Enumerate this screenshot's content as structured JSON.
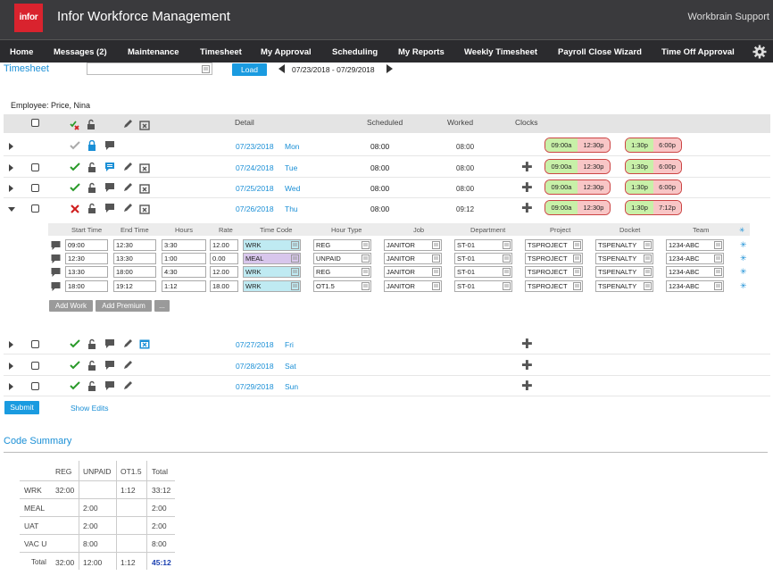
{
  "header": {
    "logo_text": "infor",
    "app_title": "Infor Workforce Management",
    "support_label": "Workbrain Support"
  },
  "nav": [
    "Home",
    "Messages (2)",
    "Maintenance",
    "Timesheet",
    "My Approval",
    "Scheduling",
    "My Reports",
    "Weekly Timesheet",
    "Payroll Close Wizard",
    "Time Off Approval"
  ],
  "toolbar": {
    "title": "Timesheet",
    "load_label": "Load",
    "date_range": "07/23/2018  -  07/29/2018"
  },
  "employee": "Employee: Price, Nina",
  "table_headers": {
    "detail": "Detail",
    "scheduled": "Scheduled",
    "worked": "Worked",
    "clocks": "Clocks"
  },
  "days": [
    {
      "date": "07/23/2018",
      "day": "Mon",
      "scheduled": "08:00",
      "worked": "08:00",
      "clocks": [
        [
          "09:00a",
          "12:30p"
        ],
        [
          "1:30p",
          "6:00p"
        ]
      ]
    },
    {
      "date": "07/24/2018",
      "day": "Tue",
      "scheduled": "08:00",
      "worked": "08:00",
      "clocks": [
        [
          "09:00a",
          "12:30p"
        ],
        [
          "1:30p",
          "6:00p"
        ]
      ]
    },
    {
      "date": "07/25/2018",
      "day": "Wed",
      "scheduled": "08:00",
      "worked": "08:00",
      "clocks": [
        [
          "09:00a",
          "12:30p"
        ],
        [
          "1:30p",
          "6:00p"
        ]
      ]
    },
    {
      "date": "07/26/2018",
      "day": "Thu",
      "scheduled": "08:00",
      "worked": "09:12",
      "clocks": [
        [
          "09:00a",
          "12:30p"
        ],
        [
          "1:30p",
          "7:12p"
        ]
      ]
    },
    {
      "date": "07/27/2018",
      "day": "Fri",
      "scheduled": "",
      "worked": "",
      "clocks": []
    },
    {
      "date": "07/28/2018",
      "day": "Sat",
      "scheduled": "",
      "worked": "",
      "clocks": []
    },
    {
      "date": "07/29/2018",
      "day": "Sun",
      "scheduled": "",
      "worked": "",
      "clocks": []
    }
  ],
  "detail_headers": [
    "Start Time",
    "End Time",
    "Hours",
    "Rate",
    "Time Code",
    "Hour Type",
    "Job",
    "Department",
    "Project",
    "Docket",
    "Team"
  ],
  "detail_rows": [
    [
      "09:00",
      "12:30",
      "3:30",
      "12.00",
      "WRK",
      "REG",
      "JANITOR",
      "ST-01",
      "TSPROJECT",
      "TSPENALTY",
      "1234-ABC"
    ],
    [
      "12:30",
      "13:30",
      "1:00",
      "0.00",
      "MEAL",
      "UNPAID",
      "JANITOR",
      "ST-01",
      "TSPROJECT",
      "TSPENALTY",
      "1234-ABC"
    ],
    [
      "13:30",
      "18:00",
      "4:30",
      "12.00",
      "WRK",
      "REG",
      "JANITOR",
      "ST-01",
      "TSPROJECT",
      "TSPENALTY",
      "1234-ABC"
    ],
    [
      "18:00",
      "19:12",
      "1:12",
      "18.00",
      "WRK",
      "OT1.5",
      "JANITOR",
      "ST-01",
      "TSPROJECT",
      "TSPENALTY",
      "1234-ABC"
    ]
  ],
  "detail_buttons": {
    "add_work": "Add Work",
    "add_premium": "Add Premium",
    "more": "..."
  },
  "submit_label": "Submit",
  "show_edits_label": "Show Edits",
  "code_summary": {
    "title": "Code Summary",
    "columns": [
      "REG",
      "UNPAID",
      "OT1.5",
      "Total"
    ],
    "rows": [
      {
        "code": "WRK",
        "values": [
          "32:00",
          "",
          "1:12",
          "33:12"
        ]
      },
      {
        "code": "MEAL",
        "values": [
          "",
          "2:00",
          "",
          "2:00"
        ]
      },
      {
        "code": "UAT",
        "values": [
          "",
          "2:00",
          "",
          "2:00"
        ]
      },
      {
        "code": "VAC U",
        "values": [
          "",
          "8:00",
          "",
          "8:00"
        ]
      }
    ],
    "total_label": "Total",
    "totals": [
      "32:00",
      "12:00",
      "1:12",
      "45:12"
    ]
  },
  "colors": {
    "accent": "#1a8fd6",
    "brand": "#d9232e",
    "clock_in": "#c8f0a8",
    "clock_out": "#f8c6c6"
  }
}
